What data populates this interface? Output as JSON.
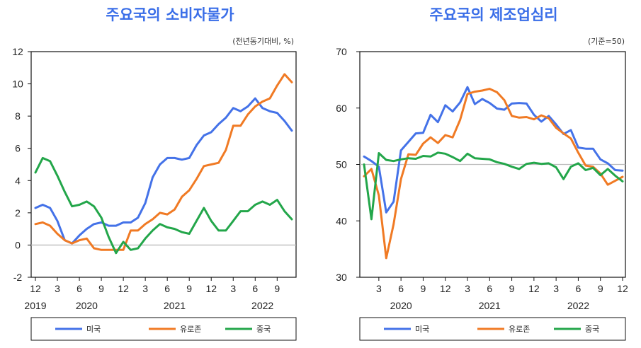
{
  "chart_data": [
    {
      "type": "line",
      "title": "주요국의 소비자물가",
      "unit_label": "(전년동기대비, %)",
      "ylim": [
        -2,
        12
      ],
      "yticks": [
        "12",
        "10",
        "8",
        "6",
        "4",
        "2",
        "0",
        "-2"
      ],
      "x_month_labels": [
        "12",
        "3",
        "6",
        "9",
        "12",
        "3",
        "6",
        "9",
        "12",
        "3",
        "6",
        "9"
      ],
      "x_year_labels": [
        "2019",
        "2020",
        "2021",
        "2022"
      ],
      "baseline": 0,
      "legend": [
        "미국",
        "유로존",
        "중국"
      ],
      "x": [
        "2019-12",
        "2020-01",
        "2020-02",
        "2020-03",
        "2020-04",
        "2020-05",
        "2020-06",
        "2020-07",
        "2020-08",
        "2020-09",
        "2020-10",
        "2020-11",
        "2020-12",
        "2021-01",
        "2021-02",
        "2021-03",
        "2021-04",
        "2021-05",
        "2021-06",
        "2021-07",
        "2021-08",
        "2021-09",
        "2021-10",
        "2021-11",
        "2021-12",
        "2022-01",
        "2022-02",
        "2022-03",
        "2022-04",
        "2022-05",
        "2022-06",
        "2022-07",
        "2022-08",
        "2022-09",
        "2022-10",
        "2022-11"
      ],
      "series": [
        {
          "name": "미국",
          "color": "#4472e8",
          "values": [
            2.3,
            2.5,
            2.3,
            1.5,
            0.3,
            0.1,
            0.6,
            1.0,
            1.3,
            1.4,
            1.2,
            1.2,
            1.4,
            1.4,
            1.7,
            2.6,
            4.2,
            5.0,
            5.4,
            5.4,
            5.3,
            5.4,
            6.2,
            6.8,
            7.0,
            7.5,
            7.9,
            8.5,
            8.3,
            8.6,
            9.1,
            8.5,
            8.3,
            8.2,
            7.7,
            7.1
          ]
        },
        {
          "name": "유로존",
          "color": "#f07a24",
          "values": [
            1.3,
            1.4,
            1.2,
            0.7,
            0.3,
            0.1,
            0.3,
            0.4,
            -0.2,
            -0.3,
            -0.3,
            -0.3,
            -0.3,
            0.9,
            0.9,
            1.3,
            1.6,
            2.0,
            1.9,
            2.2,
            3.0,
            3.4,
            4.1,
            4.9,
            5.0,
            5.1,
            5.9,
            7.4,
            7.4,
            8.1,
            8.6,
            8.9,
            9.1,
            9.9,
            10.6,
            10.1
          ]
        },
        {
          "name": "중국",
          "color": "#23a64a",
          "values": [
            4.5,
            5.4,
            5.2,
            4.3,
            3.3,
            2.4,
            2.5,
            2.7,
            2.4,
            1.7,
            0.5,
            -0.5,
            0.2,
            -0.3,
            -0.2,
            0.4,
            0.9,
            1.3,
            1.1,
            1.0,
            0.8,
            0.7,
            1.5,
            2.3,
            1.5,
            0.9,
            0.9,
            1.5,
            2.1,
            2.1,
            2.5,
            2.7,
            2.5,
            2.8,
            2.1,
            1.6
          ]
        }
      ]
    },
    {
      "type": "line",
      "title": "주요국의 제조업심리",
      "unit_label": "(기준=50)",
      "ylim": [
        30,
        70
      ],
      "yticks": [
        "70",
        "60",
        "50",
        "40",
        "30"
      ],
      "x_month_labels": [
        "3",
        "6",
        "9",
        "12",
        "3",
        "6",
        "9",
        "12",
        "3",
        "6",
        "9",
        "12"
      ],
      "x_year_labels": [
        "2020",
        "2021",
        "2022"
      ],
      "baseline": 50,
      "legend": [
        "미국",
        "유로존",
        "중국"
      ],
      "x": [
        "2020-01",
        "2020-02",
        "2020-03",
        "2020-04",
        "2020-05",
        "2020-06",
        "2020-07",
        "2020-08",
        "2020-09",
        "2020-10",
        "2020-11",
        "2020-12",
        "2021-01",
        "2021-02",
        "2021-03",
        "2021-04",
        "2021-05",
        "2021-06",
        "2021-07",
        "2021-08",
        "2021-09",
        "2021-10",
        "2021-11",
        "2021-12",
        "2022-01",
        "2022-02",
        "2022-03",
        "2022-04",
        "2022-05",
        "2022-06",
        "2022-07",
        "2022-08",
        "2022-09",
        "2022-10",
        "2022-11",
        "2022-12"
      ],
      "series": [
        {
          "name": "미국",
          "color": "#4472e8",
          "values": [
            51.4,
            50.6,
            49.6,
            41.5,
            43.4,
            52.5,
            54.0,
            55.5,
            55.6,
            58.8,
            57.5,
            60.5,
            59.4,
            61.0,
            63.7,
            60.7,
            61.6,
            60.9,
            59.9,
            59.7,
            60.8,
            60.9,
            60.8,
            58.8,
            57.6,
            58.6,
            57.1,
            55.4,
            56.1,
            53.0,
            52.8,
            52.8,
            50.9,
            50.2,
            49.0,
            48.9
          ]
        },
        {
          "name": "유로존",
          "color": "#f07a24",
          "values": [
            47.9,
            49.2,
            44.5,
            33.4,
            39.4,
            47.4,
            51.8,
            51.7,
            53.7,
            54.8,
            53.8,
            55.2,
            54.8,
            57.9,
            62.5,
            62.9,
            63.1,
            63.4,
            62.8,
            61.4,
            58.6,
            58.3,
            58.4,
            58.0,
            58.7,
            58.2,
            56.5,
            55.5,
            54.6,
            52.1,
            49.8,
            49.6,
            48.4,
            46.4,
            47.1,
            47.8
          ]
        },
        {
          "name": "중국",
          "color": "#23a64a",
          "values": [
            50.0,
            40.3,
            52.0,
            50.8,
            50.6,
            50.9,
            51.1,
            51.0,
            51.5,
            51.4,
            52.1,
            51.9,
            51.3,
            50.6,
            51.9,
            51.1,
            51.0,
            50.9,
            50.4,
            50.1,
            49.6,
            49.2,
            50.1,
            50.3,
            50.1,
            50.2,
            49.5,
            47.4,
            49.6,
            50.2,
            49.0,
            49.4,
            48.1,
            49.2,
            48.0,
            47.0
          ]
        }
      ]
    }
  ]
}
